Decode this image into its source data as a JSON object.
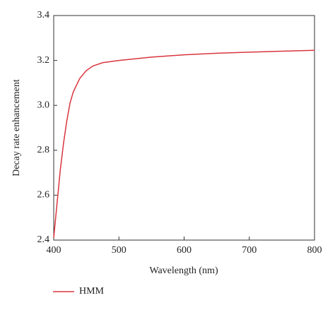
{
  "chart_data": {
    "type": "line",
    "x_label": "Wavelength (nm)",
    "y_label": "Decay rate enhancement",
    "xlim": [
      400,
      800
    ],
    "xticks": [
      400,
      500,
      600,
      700,
      800
    ],
    "ylim": [
      2.4,
      3.4
    ],
    "yticks": [
      2.4,
      2.6,
      2.8,
      {
        "value": 3,
        "label": "3.0"
      },
      3.2,
      3.4
    ],
    "legend": "bottom-left",
    "x": [
      400,
      405,
      410,
      415,
      420,
      425,
      430,
      440,
      450,
      460,
      475,
      500,
      550,
      600,
      650,
      700,
      750,
      800
    ],
    "series": [
      {
        "name": "HMM",
        "color": "#d9363e",
        "values": [
          2.41,
          2.56,
          2.71,
          2.83,
          2.93,
          3.01,
          3.06,
          3.12,
          3.155,
          3.175,
          3.19,
          3.2,
          3.215,
          3.225,
          3.232,
          3.237,
          3.241,
          3.245
        ]
      }
    ]
  }
}
